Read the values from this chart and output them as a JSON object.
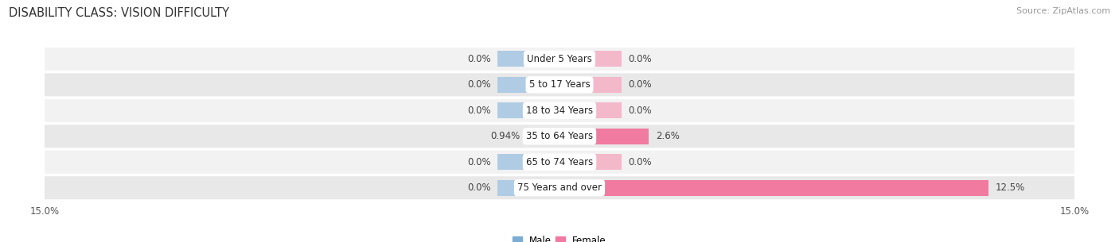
{
  "title": "DISABILITY CLASS: VISION DIFFICULTY",
  "source": "Source: ZipAtlas.com",
  "categories": [
    "Under 5 Years",
    "5 to 17 Years",
    "18 to 34 Years",
    "35 to 64 Years",
    "65 to 74 Years",
    "75 Years and over"
  ],
  "male_values": [
    0.0,
    0.0,
    0.0,
    0.94,
    0.0,
    0.0
  ],
  "female_values": [
    0.0,
    0.0,
    0.0,
    2.6,
    0.0,
    12.5
  ],
  "male_label": [
    "0.0%",
    "0.0%",
    "0.0%",
    "0.94%",
    "0.0%",
    "0.0%"
  ],
  "female_label": [
    "0.0%",
    "0.0%",
    "0.0%",
    "2.6%",
    "0.0%",
    "12.5%"
  ],
  "male_color": "#7badd4",
  "female_color": "#f07aa0",
  "male_color_zero": "#b0cce4",
  "female_color_zero": "#f4b8cb",
  "row_bg_even": "#f2f2f2",
  "row_bg_odd": "#e8e8e8",
  "xlim": 15.0,
  "zero_stub": 1.8,
  "bar_height": 0.62,
  "title_fontsize": 10.5,
  "label_fontsize": 8.5,
  "cat_fontsize": 8.5,
  "tick_fontsize": 8.5,
  "source_fontsize": 8
}
